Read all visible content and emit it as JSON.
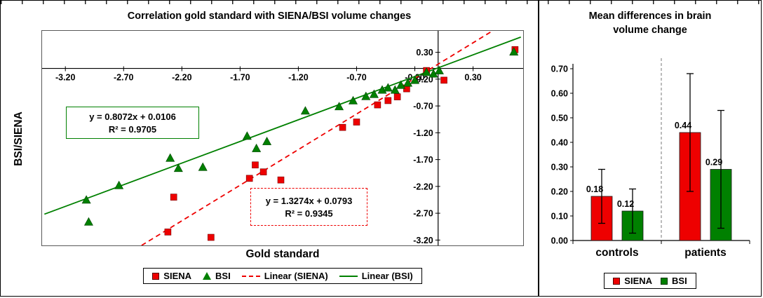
{
  "chart_data": [
    {
      "type": "scatter",
      "title": "Correlation gold standard with SIENA/BSI volume changes",
      "xlabel": "Gold standard",
      "ylabel": "BSI/SIENA",
      "xlim": [
        -3.4,
        0.73
      ],
      "ylim": [
        -3.3,
        0.7
      ],
      "xticks": [
        -3.2,
        -2.7,
        -2.2,
        -1.7,
        -1.2,
        -0.7,
        -0.2,
        0.3
      ],
      "xtick_labels": [
        "-3.20",
        "-2.70",
        "-2.20",
        "-1.70",
        "-1.20",
        "-0.70",
        "-0.20",
        "0.30"
      ],
      "yticks": [
        0.3,
        -0.2,
        -0.7,
        -1.2,
        -1.7,
        -2.2,
        -2.7,
        -3.2
      ],
      "ytick_labels": [
        "0.30",
        "-0.20",
        "-0.70",
        "-1.20",
        "-1.70",
        "-2.20",
        "-2.70",
        "-3.20"
      ],
      "axes_cross_at": [
        0,
        0
      ],
      "series": [
        {
          "name": "SIENA",
          "color": "#ee0000",
          "marker": "square",
          "points": [
            [
              -2.32,
              -3.05
            ],
            [
              -1.95,
              -3.15
            ],
            [
              -2.27,
              -2.4
            ],
            [
              -1.62,
              -2.05
            ],
            [
              -1.57,
              -1.8
            ],
            [
              -1.5,
              -1.93
            ],
            [
              -1.35,
              -2.08
            ],
            [
              -0.82,
              -1.1
            ],
            [
              -0.7,
              -1.0
            ],
            [
              -0.52,
              -0.68
            ],
            [
              -0.43,
              -0.6
            ],
            [
              -0.35,
              -0.53
            ],
            [
              -0.27,
              -0.38
            ],
            [
              -0.1,
              -0.04
            ],
            [
              0.05,
              -0.22
            ],
            [
              0.66,
              0.35
            ]
          ],
          "trendline": {
            "label": "Linear (SIENA)",
            "style": "dashed",
            "slope": 1.3274,
            "intercept": 0.0793,
            "r2": 0.9345,
            "equation": "y = 1.3274x + 0.0793",
            "r2_label": "R² = 0.9345"
          }
        },
        {
          "name": "BSI",
          "color": "#008000",
          "marker": "triangle",
          "points": [
            [
              -3.02,
              -2.45
            ],
            [
              -3.0,
              -2.86
            ],
            [
              -2.74,
              -2.18
            ],
            [
              -2.3,
              -1.67
            ],
            [
              -2.23,
              -1.86
            ],
            [
              -2.02,
              -1.84
            ],
            [
              -1.64,
              -1.26
            ],
            [
              -1.56,
              -1.49
            ],
            [
              -1.47,
              -1.36
            ],
            [
              -1.14,
              -0.79
            ],
            [
              -0.85,
              -0.71
            ],
            [
              -0.73,
              -0.6
            ],
            [
              -0.62,
              -0.52
            ],
            [
              -0.55,
              -0.48
            ],
            [
              -0.48,
              -0.4
            ],
            [
              -0.43,
              -0.36
            ],
            [
              -0.37,
              -0.4
            ],
            [
              -0.32,
              -0.31
            ],
            [
              -0.26,
              -0.27
            ],
            [
              -0.2,
              -0.22
            ],
            [
              -0.1,
              -0.07
            ],
            [
              -0.04,
              -0.1
            ],
            [
              0.01,
              -0.04
            ],
            [
              0.65,
              0.31
            ]
          ],
          "trendline": {
            "label": "Linear (BSI)",
            "style": "solid",
            "slope": 0.8072,
            "intercept": 0.0106,
            "r2": 0.9705,
            "equation": "y = 0.8072x + 0.0106",
            "r2_label": "R² = 0.9705"
          }
        }
      ]
    },
    {
      "type": "bar",
      "title": "Mean differences in brain volume change",
      "categories": [
        "controls",
        "patients"
      ],
      "ylim": [
        0,
        0.7
      ],
      "yticks": [
        0.0,
        0.1,
        0.2,
        0.3,
        0.4,
        0.5,
        0.6,
        0.7
      ],
      "ytick_labels": [
        "0.00",
        "0.10",
        "0.20",
        "0.30",
        "0.40",
        "0.50",
        "0.60",
        "0.70"
      ],
      "grid": "off",
      "group_divider": "dashed",
      "series": [
        {
          "name": "SIENA",
          "color": "#ee0000",
          "values": [
            0.18,
            0.44
          ],
          "errors": [
            0.11,
            0.24
          ],
          "value_labels": [
            "0.18",
            "0.44"
          ]
        },
        {
          "name": "BSI",
          "color": "#008000",
          "values": [
            0.12,
            0.29
          ],
          "errors": [
            0.09,
            0.24
          ],
          "value_labels": [
            "0.12",
            "0.29"
          ]
        }
      ]
    }
  ]
}
